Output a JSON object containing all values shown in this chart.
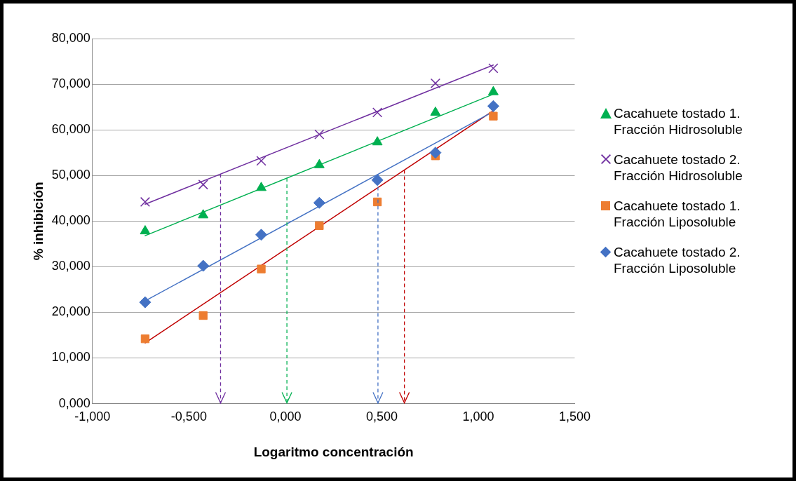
{
  "chart_data": {
    "type": "scatter",
    "xlabel": "Logaritmo concentración",
    "ylabel": "% inhibición",
    "xlim": [
      -1,
      1.5
    ],
    "ylim": [
      0,
      80
    ],
    "xticks": [
      {
        "value": -1,
        "label": "-1,000"
      },
      {
        "value": -0.5,
        "label": "-0,500"
      },
      {
        "value": 0,
        "label": "0,000"
      },
      {
        "value": 0.5,
        "label": "0,500"
      },
      {
        "value": 1,
        "label": "1,000"
      },
      {
        "value": 1.5,
        "label": "1,500"
      }
    ],
    "yticks": [
      {
        "value": 0,
        "label": "0,000"
      },
      {
        "value": 10,
        "label": "10,000"
      },
      {
        "value": 20,
        "label": "20,000"
      },
      {
        "value": 30,
        "label": "30,000"
      },
      {
        "value": 40,
        "label": "40,000"
      },
      {
        "value": 50,
        "label": "50,000"
      },
      {
        "value": 60,
        "label": "60,000"
      },
      {
        "value": 70,
        "label": "70,000"
      },
      {
        "value": 80,
        "label": "80,000"
      }
    ],
    "grid": "y",
    "legend": "right",
    "series": [
      {
        "name": "Cacahuete tostado 1. Fracción Hidrosoluble",
        "marker": "triangle",
        "color": "#00b050",
        "x": [
          -0.727,
          -0.426,
          -0.125,
          0.176,
          0.477,
          0.778,
          1.078
        ],
        "values": [
          37.8,
          41.3,
          47.3,
          52.3,
          57.3,
          63.8,
          68.3
        ]
      },
      {
        "name": "Cacahuete tostado 2. Fracción Hidrosoluble",
        "marker": "cross",
        "color": "#7030a0",
        "x": [
          -0.727,
          -0.426,
          -0.125,
          0.176,
          0.477,
          0.778,
          1.078
        ],
        "values": [
          44.2,
          48,
          53.2,
          59,
          63.8,
          70.2,
          73.5
        ]
      },
      {
        "name": "Cacahuete tostado 1. Fracción Liposoluble",
        "marker": "square",
        "color": "#ed7d31",
        "x": [
          -0.727,
          -0.426,
          -0.125,
          0.176,
          0.477,
          0.778,
          1.078
        ],
        "values": [
          14.2,
          19.3,
          29.5,
          39,
          44.2,
          54.3,
          63
        ]
      },
      {
        "name": "Cacahuete tostado 2. Fracción Liposoluble",
        "marker": "diamond",
        "color": "#4472c4",
        "x": [
          -0.727,
          -0.426,
          -0.125,
          0.176,
          0.477,
          0.778,
          1.078
        ],
        "values": [
          22.2,
          30.2,
          37,
          44,
          49,
          55,
          65.2
        ]
      },
      {
        "type": "line",
        "marker": "none",
        "color": "#7030a0",
        "x": [
          -0.727,
          1.078
        ],
        "values": [
          43.7,
          74.2
        ]
      },
      {
        "type": "line",
        "marker": "none",
        "color": "#00b050",
        "x": [
          -0.727,
          1.078
        ],
        "values": [
          36.8,
          67.8
        ]
      },
      {
        "type": "line",
        "marker": "none",
        "color": "#4472c4",
        "x": [
          -0.727,
          1.078
        ],
        "values": [
          22.5,
          64
        ]
      },
      {
        "type": "line",
        "marker": "none",
        "color": "#c00000",
        "x": [
          -0.727,
          1.078
        ],
        "values": [
          13.3,
          64.2
        ]
      }
    ],
    "ref_lines": [
      {
        "axis": "x",
        "value": -0.336,
        "color": "#7030a0",
        "line_style": "dashed"
      },
      {
        "axis": "x",
        "value": 0.008,
        "color": "#00b050",
        "line_style": "dashed"
      },
      {
        "axis": "x",
        "value": 0.48,
        "color": "#4472c4",
        "line_style": "dashed"
      },
      {
        "axis": "x",
        "value": 0.617,
        "color": "#c00000",
        "line_style": "dashed"
      }
    ]
  }
}
